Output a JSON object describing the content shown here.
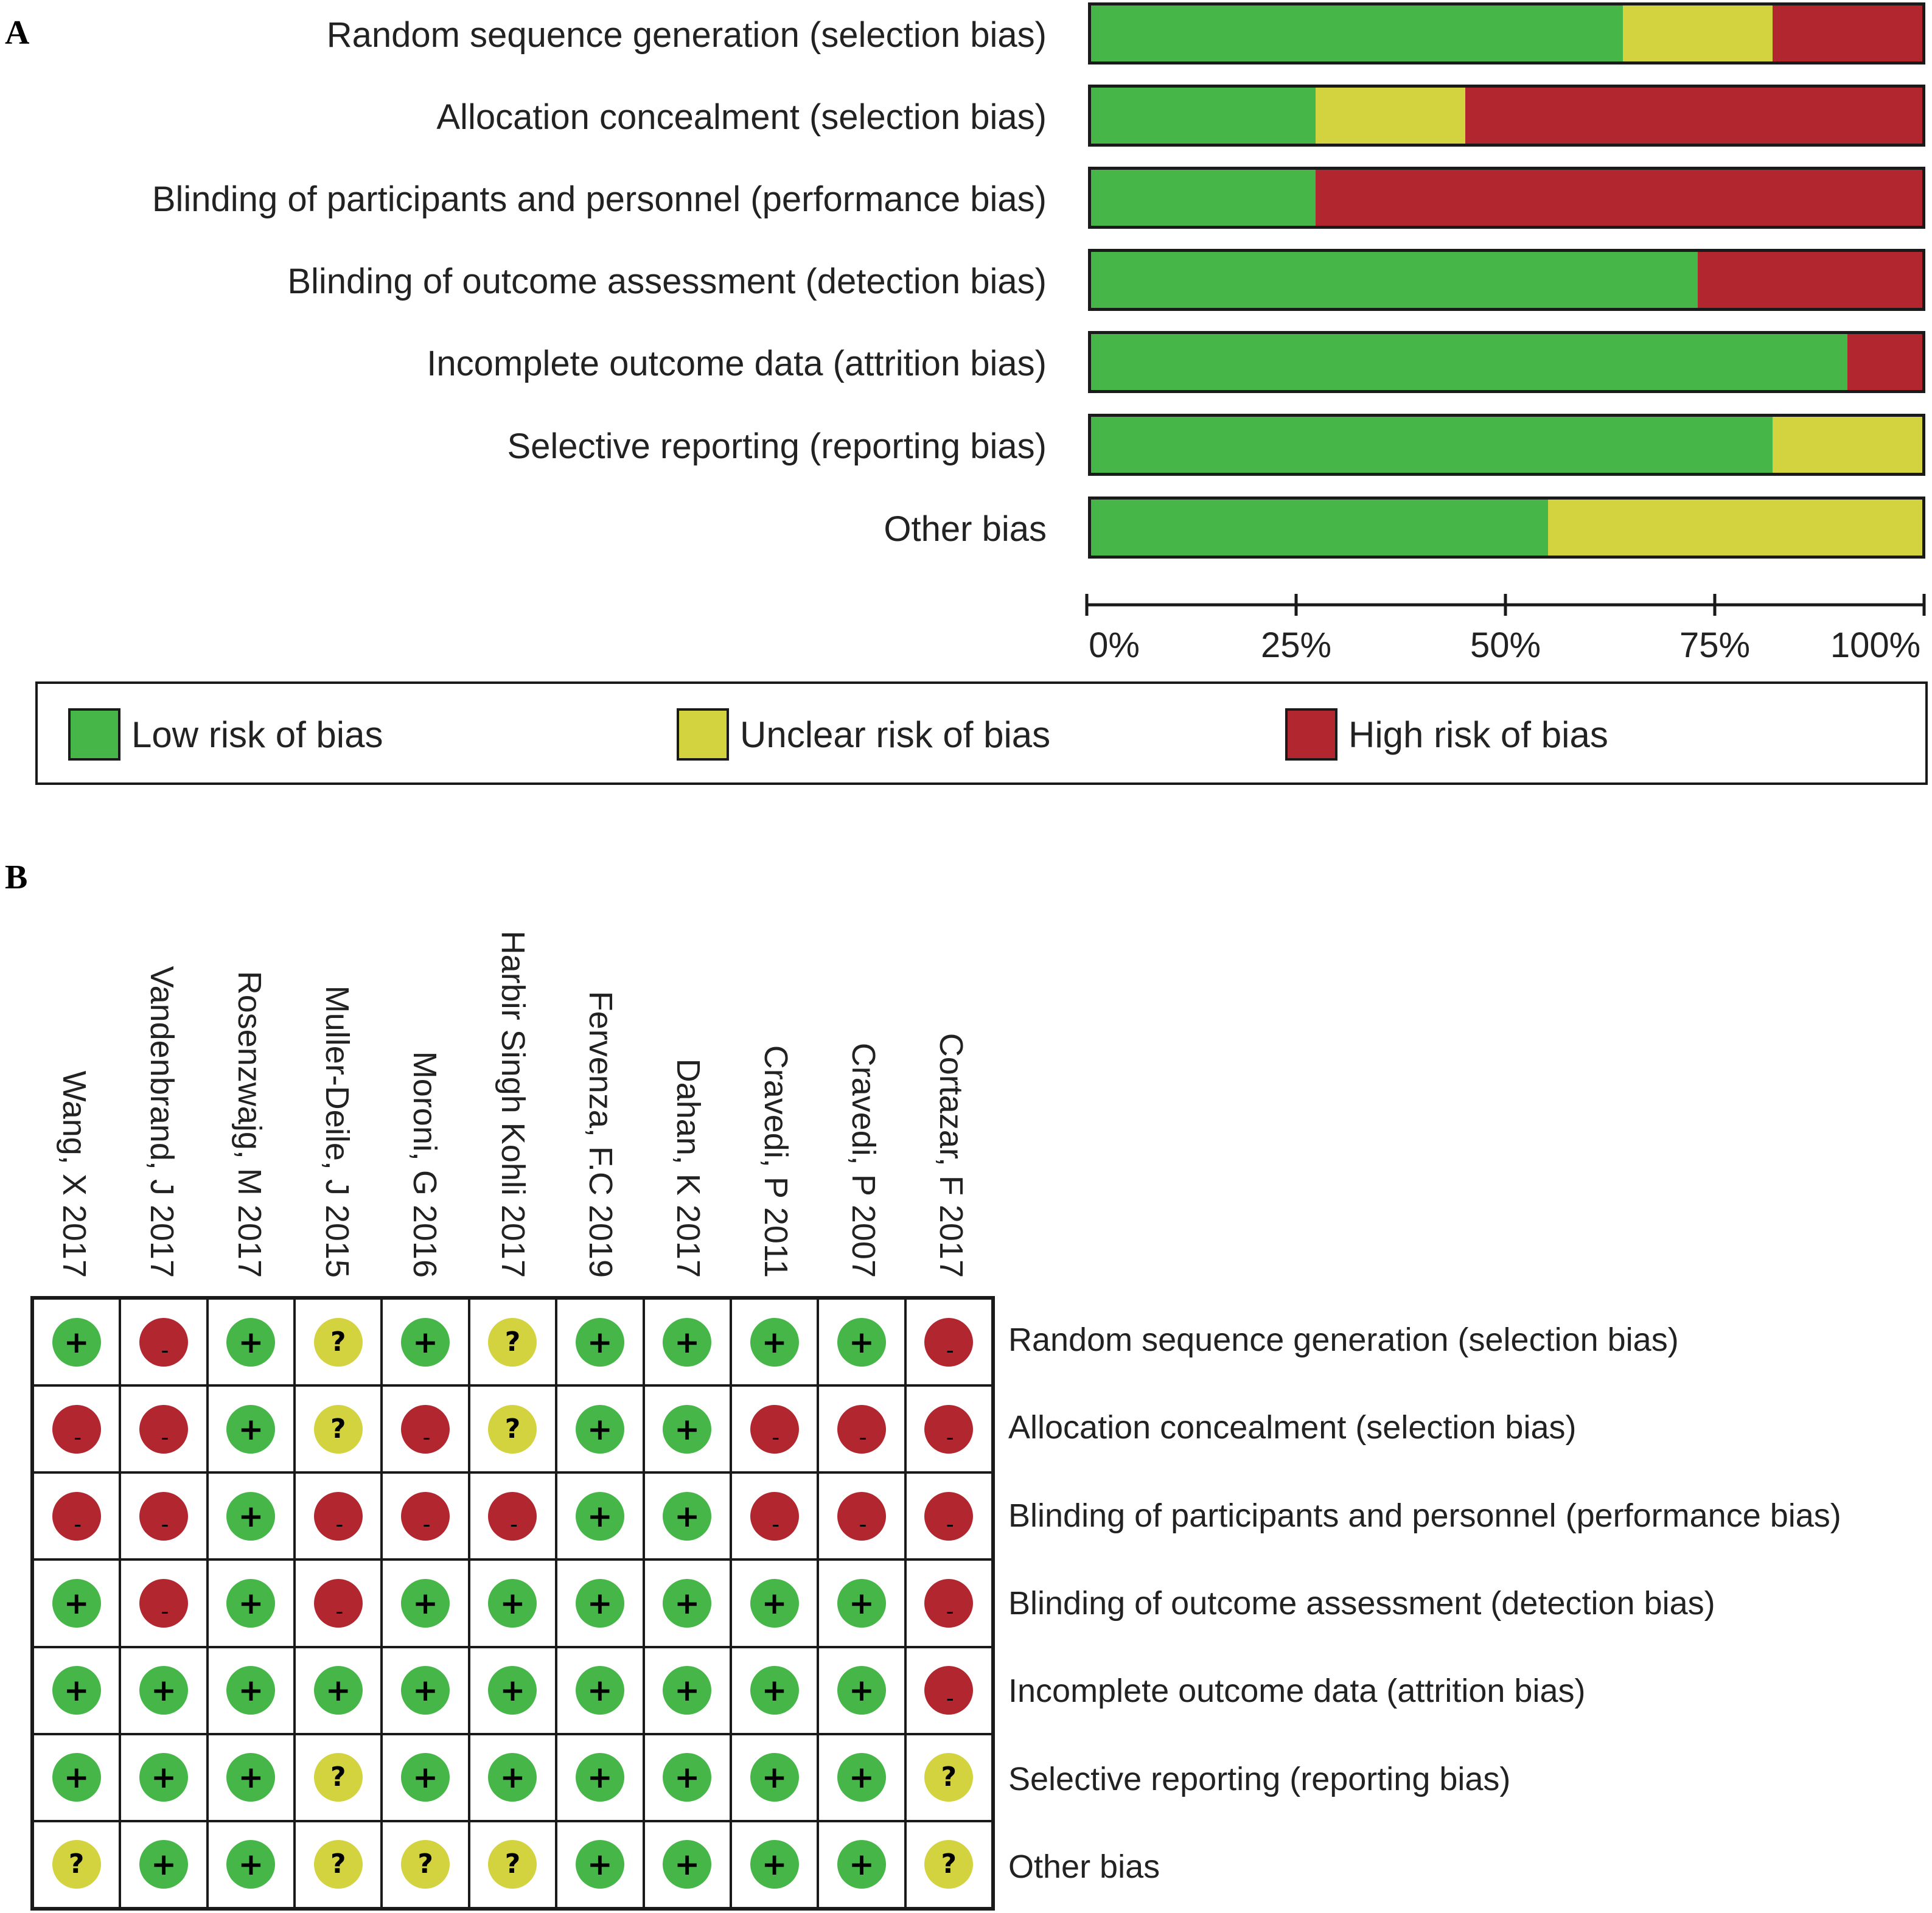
{
  "panel_a_letter": "A",
  "panel_b_letter": "B",
  "colors": {
    "low": "#46b649",
    "unclear": "#d3d23f",
    "high": "#b2262f"
  },
  "legend": {
    "low": "Low risk of bias",
    "unclear": "Unclear risk of bias",
    "high": "High risk of bias"
  },
  "chart_data": [
    {
      "type": "bar",
      "orientation": "horizontal",
      "stacked": true,
      "categories": [
        "Random sequence generation (selection bias)",
        "Allocation concealment (selection bias)",
        "Blinding of participants and personnel (performance bias)",
        "Blinding of outcome assessment (detection bias)",
        "Incomplete outcome data (attrition bias)",
        "Selective reporting (reporting bias)",
        "Other bias"
      ],
      "series": [
        {
          "name": "Low risk of bias",
          "values": [
            64,
            27,
            27,
            73,
            91,
            82,
            55
          ]
        },
        {
          "name": "Unclear risk of bias",
          "values": [
            18,
            18,
            0,
            0,
            0,
            18,
            45
          ]
        },
        {
          "name": "High risk of bias",
          "values": [
            18,
            55,
            73,
            27,
            9,
            0,
            0
          ]
        }
      ],
      "xticks": [
        "0%",
        "25%",
        "50%",
        "75%",
        "100%"
      ],
      "xlim": [
        0,
        100
      ],
      "legend_position": "bottom"
    },
    {
      "type": "table",
      "studies": [
        "Wang, X 2017",
        "Vandenbrand, J 2017",
        "Rosenzwajg, M 2017",
        "Muller-Deile, J 2015",
        "Moroni, G 2016",
        "Harbir Singh Kohli 2017",
        "Fervenza, F.C 2019",
        "Dahan, K 2017",
        "Cravedi, P 2011",
        "Cravedi, P 2007",
        "Cortazar, F 2017"
      ],
      "domains": [
        "Random sequence generation (selection bias)",
        "Allocation concealment (selection bias)",
        "Blinding of participants and personnel (performance bias)",
        "Blinding of outcome assessment (detection bias)",
        "Incomplete outcome data (attrition bias)",
        "Selective reporting (reporting bias)",
        "Other bias"
      ],
      "judgements": [
        [
          "low",
          "high",
          "low",
          "unclear",
          "low",
          "unclear",
          "low",
          "low",
          "low",
          "low",
          "high"
        ],
        [
          "high",
          "high",
          "low",
          "unclear",
          "high",
          "unclear",
          "low",
          "low",
          "high",
          "high",
          "high"
        ],
        [
          "high",
          "high",
          "low",
          "high",
          "high",
          "high",
          "low",
          "low",
          "high",
          "high",
          "high"
        ],
        [
          "low",
          "high",
          "low",
          "high",
          "low",
          "low",
          "low",
          "low",
          "low",
          "low",
          "high"
        ],
        [
          "low",
          "low",
          "low",
          "low",
          "low",
          "low",
          "low",
          "low",
          "low",
          "low",
          "high"
        ],
        [
          "low",
          "low",
          "low",
          "unclear",
          "low",
          "low",
          "low",
          "low",
          "low",
          "low",
          "unclear"
        ],
        [
          "unclear",
          "low",
          "low",
          "unclear",
          "unclear",
          "unclear",
          "low",
          "low",
          "low",
          "low",
          "unclear"
        ]
      ],
      "symbols": {
        "low": "+",
        "unclear": "?",
        "high": "–"
      }
    }
  ]
}
